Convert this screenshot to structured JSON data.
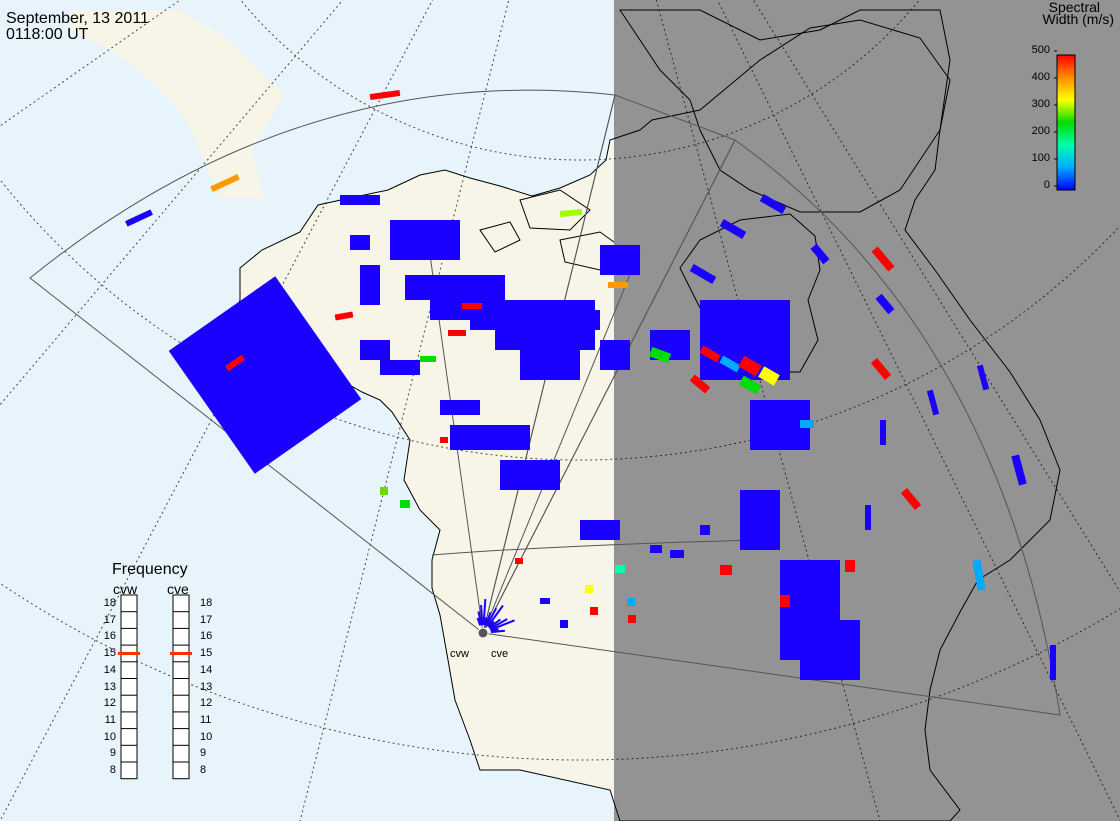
{
  "header": {
    "date": "September, 13 2011",
    "time": "0118:00 UT"
  },
  "legend": {
    "title_line1": "Spectral",
    "title_line2": "Width (m/s)",
    "ticks": [
      "500",
      "400",
      "300",
      "200",
      "100",
      "0"
    ],
    "colors": [
      "#ff0000",
      "#ff8c00",
      "#ffff00",
      "#00dd00",
      "#00ffaa",
      "#00aaff",
      "#0000ff"
    ]
  },
  "frequency_panel": {
    "title": "Frequency",
    "radars": [
      {
        "name": "cvw",
        "value": 15
      },
      {
        "name": "cve",
        "value": 15
      }
    ],
    "labels": [
      "18",
      "17",
      "16",
      "15",
      "14",
      "13",
      "12",
      "11",
      "10",
      "9",
      "8"
    ]
  },
  "map": {
    "radar_labels": [
      "cvw",
      "cve"
    ],
    "colors": {
      "ocean": "#e8f4fc",
      "land_day": "#f6f5e8",
      "night": "#939393",
      "night_land": "#939393",
      "outline": "#000000",
      "echo": "#1a00ff"
    }
  }
}
